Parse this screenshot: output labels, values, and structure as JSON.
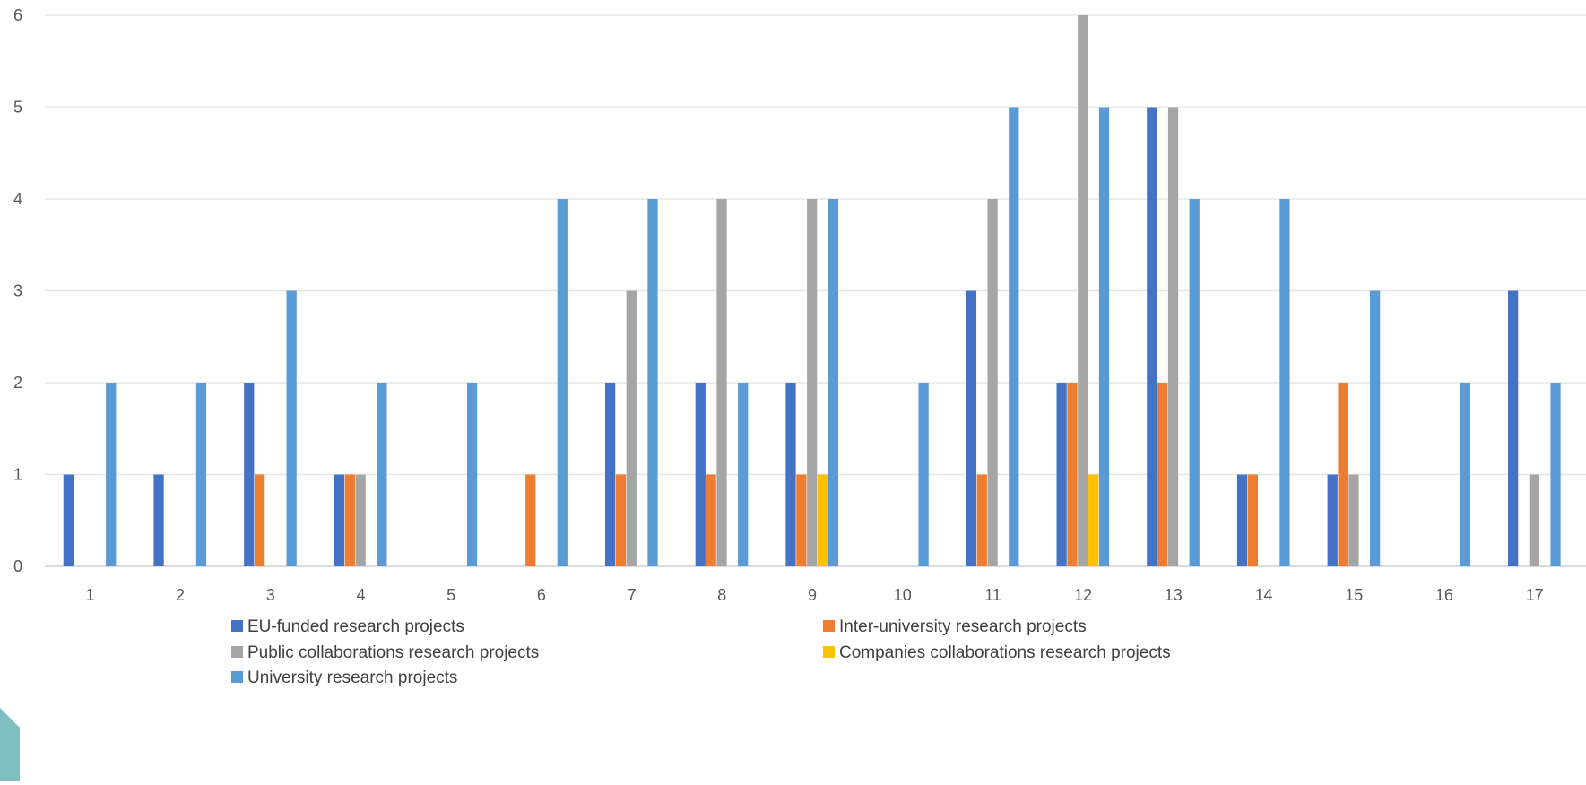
{
  "chart_data": {
    "type": "bar",
    "title": "",
    "xlabel": "",
    "ylabel": "",
    "categories": [
      "1",
      "2",
      "3",
      "4",
      "5",
      "6",
      "7",
      "8",
      "9",
      "10",
      "11",
      "12",
      "13",
      "14",
      "15",
      "16",
      "17"
    ],
    "ylim": [
      0,
      6
    ],
    "yticks": [
      "0",
      "1",
      "2",
      "3",
      "4",
      "5",
      "6"
    ],
    "grid": true,
    "legend_position": "bottom",
    "series": [
      {
        "name": "EU-funded research projects",
        "color": "#4472C4",
        "values": [
          1,
          1,
          2,
          1,
          0,
          0,
          2,
          2,
          2,
          0,
          3,
          2,
          5,
          1,
          1,
          0,
          3
        ]
      },
      {
        "name": "Inter-university research projects",
        "color": "#ED7D31",
        "values": [
          0,
          0,
          1,
          1,
          0,
          1,
          1,
          1,
          1,
          0,
          1,
          2,
          2,
          1,
          2,
          0,
          0
        ]
      },
      {
        "name": "Public collaborations research projects",
        "color": "#A5A5A5",
        "values": [
          0,
          0,
          0,
          1,
          0,
          0,
          3,
          4,
          4,
          0,
          4,
          6,
          5,
          0,
          1,
          0,
          1
        ]
      },
      {
        "name": "Companies collaborations research projects",
        "color": "#FFC000",
        "values": [
          0,
          0,
          0,
          0,
          0,
          0,
          0,
          0,
          1,
          0,
          0,
          1,
          0,
          0,
          0,
          0,
          0
        ]
      },
      {
        "name": "University research projects",
        "color": "#5B9BD5",
        "values": [
          2,
          2,
          3,
          2,
          2,
          4,
          4,
          2,
          4,
          2,
          5,
          5,
          4,
          4,
          3,
          2,
          2
        ]
      }
    ]
  },
  "decor": {
    "corner_color": "#7FBFC0"
  }
}
